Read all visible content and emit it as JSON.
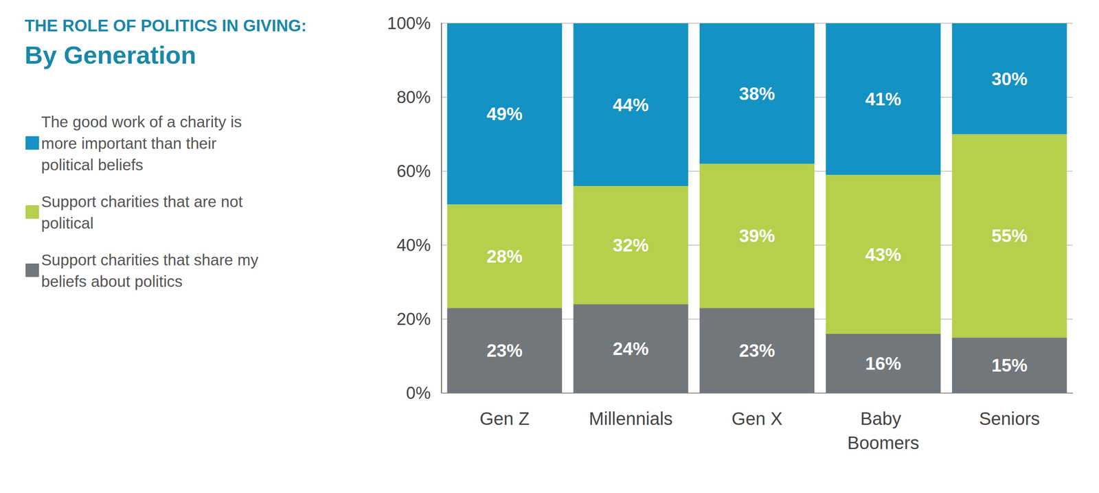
{
  "chart_data": {
    "type": "bar",
    "title": "THE ROLE OF POLITICS IN GIVING:",
    "subtitle": "By Generation",
    "categories": [
      "Gen Z",
      "Millennials",
      "Gen X",
      "Baby Boomers",
      "Seniors"
    ],
    "series": [
      {
        "name": "The good work of a charity is more important than their political beliefs",
        "color": "#1492c3",
        "values": [
          49,
          44,
          38,
          41,
          30
        ],
        "value_labels": [
          "49%",
          "44%",
          "38%",
          "41%",
          "30%"
        ]
      },
      {
        "name": "Support charities that are not political",
        "color": "#b6cf4c",
        "values": [
          28,
          32,
          39,
          43,
          55
        ],
        "value_labels": [
          "28%",
          "32%",
          "39%",
          "43%",
          "55%"
        ]
      },
      {
        "name": "Support charities that share my beliefs about politics",
        "color": "#72777c",
        "values": [
          23,
          24,
          23,
          16,
          15
        ],
        "value_labels": [
          "23%",
          "24%",
          "23%",
          "16%",
          "15%"
        ]
      }
    ],
    "ylim": [
      0,
      100
    ],
    "yticks": [
      {
        "value": 0,
        "label": "0%"
      },
      {
        "value": 20,
        "label": "20%"
      },
      {
        "value": 40,
        "label": "40%"
      },
      {
        "value": 60,
        "label": "60%"
      },
      {
        "value": 80,
        "label": "80%"
      },
      {
        "value": 100,
        "label": "100%"
      }
    ],
    "stacked": true,
    "data_labels": true,
    "grid": true,
    "legend": "top-left"
  }
}
